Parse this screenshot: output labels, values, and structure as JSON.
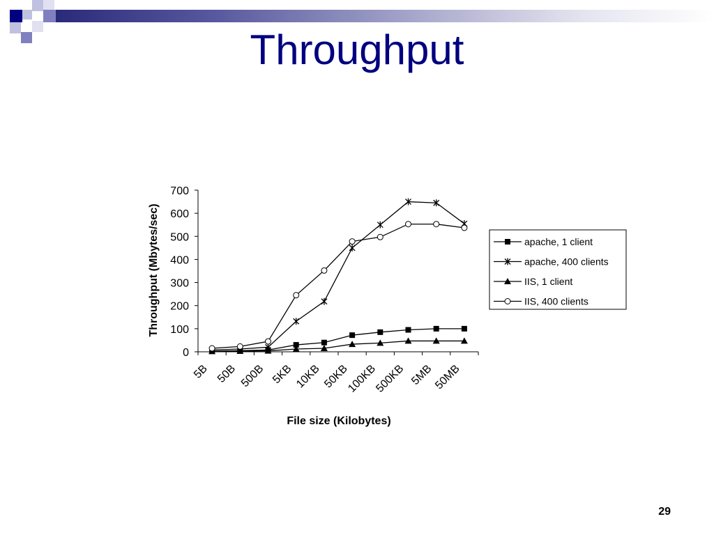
{
  "slide": {
    "title": "Throughput",
    "page_number": "29"
  },
  "colors": {
    "title": "#000080",
    "header_bar": "#2a2a7a",
    "squares": [
      "#000080",
      "#8080c0",
      "#c0c0e0"
    ]
  },
  "chart_data": {
    "type": "line",
    "title": "",
    "xlabel": "File size (Kilobytes)",
    "ylabel": "Throughput (Mbytes/sec)",
    "ylim": [
      0,
      700
    ],
    "yticks": [
      0,
      100,
      200,
      300,
      400,
      500,
      600,
      700
    ],
    "grid": false,
    "legend_position": "right",
    "x_tick_labels": [
      "5B",
      "50B",
      "500B",
      "5KB",
      "10KB",
      "50KB",
      "100KB",
      "500KB",
      "5MB",
      "50MB"
    ],
    "series": [
      {
        "name": "apache, 1 client",
        "marker": "square",
        "values": [
          3,
          5,
          8,
          30,
          40,
          72,
          85,
          95,
          100,
          100
        ]
      },
      {
        "name": "apache, 400 clients",
        "marker": "asterisk",
        "values": [
          8,
          12,
          20,
          132,
          218,
          450,
          550,
          650,
          645,
          555
        ]
      },
      {
        "name": "IIS, 1 client",
        "marker": "triangle",
        "values": [
          2,
          3,
          4,
          12,
          15,
          33,
          38,
          47,
          47,
          47
        ]
      },
      {
        "name": "IIS, 400 clients",
        "marker": "circle",
        "values": [
          15,
          23,
          45,
          245,
          352,
          478,
          497,
          553,
          553,
          537
        ]
      }
    ]
  }
}
